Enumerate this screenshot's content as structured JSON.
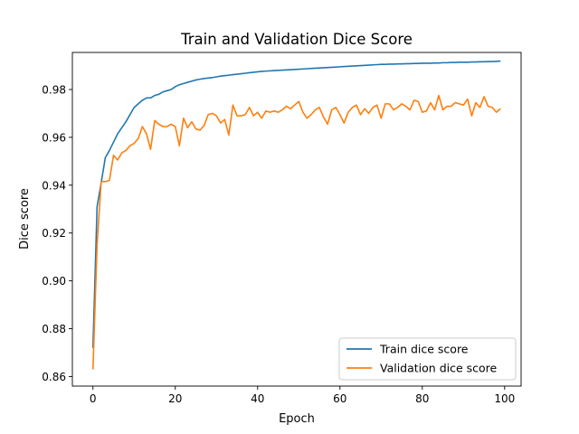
{
  "chart_data": {
    "type": "line",
    "title": "Train and Validation Dice Score",
    "xlabel": "Epoch",
    "ylabel": "Dice score",
    "xlim": [
      -5,
      104
    ],
    "ylim": [
      0.856,
      0.9955
    ],
    "xticks": [
      0,
      20,
      40,
      60,
      80,
      100
    ],
    "yticks": [
      0.86,
      0.88,
      0.9,
      0.92,
      0.94,
      0.96,
      0.98
    ],
    "ytick_labels": [
      "0.86",
      "0.88",
      "0.90",
      "0.92",
      "0.94",
      "0.96",
      "0.98"
    ],
    "grid": false,
    "legend_position": "lower-right",
    "x": [
      0,
      1,
      2,
      3,
      4,
      5,
      6,
      7,
      8,
      9,
      10,
      11,
      12,
      13,
      14,
      15,
      16,
      17,
      18,
      19,
      20,
      21,
      22,
      23,
      24,
      25,
      26,
      27,
      28,
      29,
      30,
      31,
      32,
      33,
      34,
      35,
      36,
      37,
      38,
      39,
      40,
      41,
      42,
      43,
      44,
      45,
      46,
      47,
      48,
      49,
      50,
      51,
      52,
      53,
      54,
      55,
      56,
      57,
      58,
      59,
      60,
      61,
      62,
      63,
      64,
      65,
      66,
      67,
      68,
      69,
      70,
      71,
      72,
      73,
      74,
      75,
      76,
      77,
      78,
      79,
      80,
      81,
      82,
      83,
      84,
      85,
      86,
      87,
      88,
      89,
      90,
      91,
      92,
      93,
      94,
      95,
      96,
      97,
      98,
      99
    ],
    "series": [
      {
        "name": "Train dice score",
        "color": "#1f77b4",
        "values": [
          0.872,
          0.931,
          0.941,
          0.9515,
          0.9545,
          0.958,
          0.9615,
          0.964,
          0.9665,
          0.9695,
          0.9725,
          0.974,
          0.9755,
          0.9765,
          0.9765,
          0.9775,
          0.978,
          0.979,
          0.9795,
          0.98,
          0.9812,
          0.982,
          0.9825,
          0.983,
          0.9835,
          0.984,
          0.9843,
          0.9846,
          0.9848,
          0.985,
          0.9853,
          0.9856,
          0.9858,
          0.986,
          0.9862,
          0.9864,
          0.9866,
          0.9868,
          0.987,
          0.9872,
          0.9874,
          0.9876,
          0.9877,
          0.9878,
          0.9879,
          0.988,
          0.9881,
          0.9882,
          0.9883,
          0.9884,
          0.9885,
          0.9886,
          0.9887,
          0.9888,
          0.9889,
          0.989,
          0.9891,
          0.9892,
          0.9893,
          0.9894,
          0.9895,
          0.9896,
          0.9897,
          0.9898,
          0.9899,
          0.99,
          0.9901,
          0.9902,
          0.9903,
          0.9904,
          0.9905,
          0.9905,
          0.9906,
          0.9906,
          0.9907,
          0.9907,
          0.9908,
          0.9908,
          0.9909,
          0.9909,
          0.991,
          0.991,
          0.991,
          0.9911,
          0.9911,
          0.9912,
          0.9912,
          0.9913,
          0.9913,
          0.9914,
          0.9914,
          0.9914,
          0.9915,
          0.9915,
          0.9916,
          0.9916,
          0.9917,
          0.9917,
          0.9918,
          0.9919
        ]
      },
      {
        "name": "Validation dice score",
        "color": "#ff7f0e",
        "values": [
          0.863,
          0.915,
          0.9415,
          0.9415,
          0.942,
          0.9525,
          0.9505,
          0.9535,
          0.9545,
          0.9565,
          0.9575,
          0.9595,
          0.9645,
          0.9615,
          0.955,
          0.967,
          0.9655,
          0.9645,
          0.9645,
          0.9655,
          0.9645,
          0.9565,
          0.968,
          0.964,
          0.9665,
          0.9635,
          0.963,
          0.965,
          0.9695,
          0.97,
          0.969,
          0.966,
          0.9675,
          0.961,
          0.9735,
          0.969,
          0.969,
          0.9695,
          0.9725,
          0.969,
          0.9705,
          0.968,
          0.971,
          0.9705,
          0.971,
          0.9705,
          0.9715,
          0.973,
          0.972,
          0.9735,
          0.975,
          0.9705,
          0.968,
          0.9695,
          0.9715,
          0.9725,
          0.9685,
          0.9655,
          0.9715,
          0.9725,
          0.9695,
          0.966,
          0.9705,
          0.9725,
          0.9735,
          0.9695,
          0.972,
          0.97,
          0.9725,
          0.9735,
          0.968,
          0.974,
          0.974,
          0.9715,
          0.9725,
          0.974,
          0.973,
          0.9715,
          0.9755,
          0.975,
          0.9705,
          0.971,
          0.9745,
          0.9715,
          0.9775,
          0.9715,
          0.973,
          0.973,
          0.9745,
          0.974,
          0.9735,
          0.976,
          0.969,
          0.9745,
          0.9725,
          0.977,
          0.973,
          0.9725,
          0.9705,
          0.972
        ]
      }
    ]
  }
}
